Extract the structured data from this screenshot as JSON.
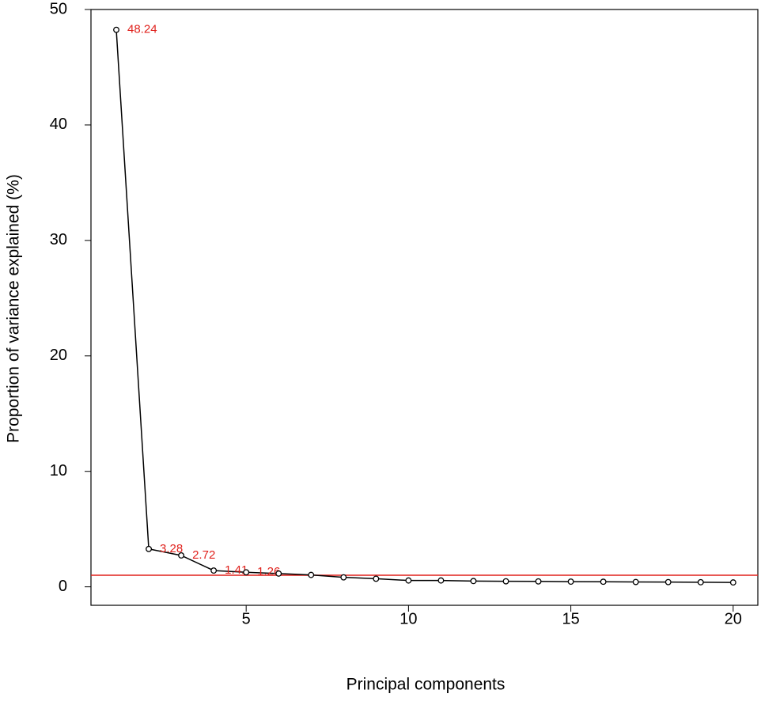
{
  "chart_data": {
    "type": "line",
    "x_label": "Principal components",
    "y_label": "Proportion of variance explained (%)",
    "x": [
      1,
      2,
      3,
      4,
      5,
      6,
      7,
      8,
      9,
      10,
      11,
      12,
      13,
      14,
      15,
      16,
      17,
      18,
      19,
      20
    ],
    "values": [
      48.24,
      3.28,
      2.72,
      1.41,
      1.26,
      1.15,
      1.03,
      0.82,
      0.7,
      0.55,
      0.55,
      0.5,
      0.48,
      0.47,
      0.45,
      0.44,
      0.42,
      0.41,
      0.4,
      0.38
    ],
    "value_labels": [
      "48.24",
      "3.28",
      "2.72",
      "1.41",
      "1.26",
      null,
      null,
      null,
      null,
      null,
      null,
      null,
      null,
      null,
      null,
      null,
      null,
      null,
      null,
      null
    ],
    "color": "#000000",
    "label_color": "#e0201b",
    "hline": 1,
    "hline_color": "#e0201b",
    "xlim": [
      0.22,
      20.76
    ],
    "ylim": [
      -1.6,
      50
    ],
    "xticks": [
      5,
      10,
      15,
      20
    ],
    "yticks": [
      0,
      10,
      20,
      30,
      40,
      50
    ]
  }
}
